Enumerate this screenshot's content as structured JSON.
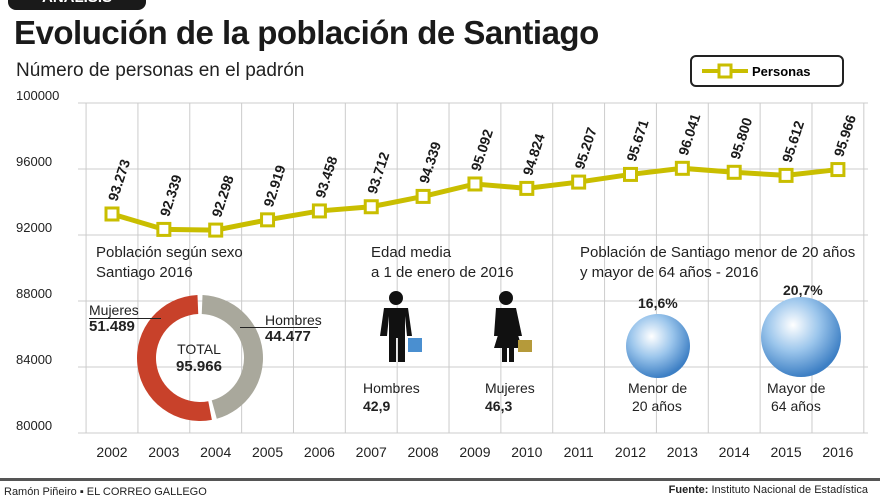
{
  "badge": "ANÁLISIS",
  "title": "Evolución de la población de Santiago",
  "subtitle": "Número de personas en el padrón",
  "legend": "Personas",
  "colors": {
    "line": "#c9be00",
    "mujeres": "#c8412a",
    "hombres": "#a9a89c",
    "circle": "#6fa8dc"
  },
  "chart_data": {
    "type": "line",
    "x": [
      "2002",
      "2003",
      "2004",
      "2005",
      "2006",
      "2007",
      "2008",
      "2009",
      "2010",
      "2011",
      "2012",
      "2013",
      "2014",
      "2015",
      "2016"
    ],
    "series": [
      {
        "name": "Personas",
        "values": [
          93273,
          92339,
          92298,
          92919,
          93458,
          93712,
          94339,
          95092,
          94824,
          95207,
          95671,
          96041,
          95800,
          95612,
          95966
        ]
      }
    ],
    "data_labels": [
      "93.273",
      "92.339",
      "92.298",
      "92.919",
      "93.458",
      "93.712",
      "94.339",
      "95.092",
      "94.824",
      "95.207",
      "95.671",
      "96.041",
      "95.800",
      "95.612",
      "95.966"
    ],
    "yticks": [
      "100000",
      "96000",
      "92000",
      "88000",
      "84000",
      "80000"
    ],
    "ytick_values": [
      100000,
      96000,
      92000,
      88000,
      84000,
      80000
    ],
    "ylim": [
      80000,
      100000
    ],
    "grid": true,
    "legend_position": "top-right"
  },
  "sex": {
    "title1": "Población según sexo",
    "title2": "Santiago 2016",
    "mujeres_label": "Mujeres",
    "mujeres_value": "51.489",
    "mujeres": 51489,
    "hombres_label": "Hombres",
    "hombres_value": "44.477",
    "hombres": 44477,
    "total_label": "TOTAL",
    "total_value": "95.966"
  },
  "age": {
    "title1": "Edad media",
    "title2": "a 1 de enero de 2016",
    "hombres_label": "Hombres",
    "hombres_value": "42,9",
    "mujeres_label": "Mujeres",
    "mujeres_value": "46,3"
  },
  "share": {
    "title1": "Población de Santiago menor de 20 años",
    "title2": "y mayor de 64 años - 2016",
    "menor_pct": "16,6%",
    "menor_l1": "Menor de",
    "menor_l2": "20 años",
    "mayor_pct": "20,7%",
    "mayor_l1": "Mayor de",
    "mayor_l2": "64 años"
  },
  "footer": {
    "credit": "Ramón Piñeiro ▪ EL CORREO GALLEGO",
    "source_label": "Fuente:",
    "source": "Instituto Nacional de Estadística"
  }
}
